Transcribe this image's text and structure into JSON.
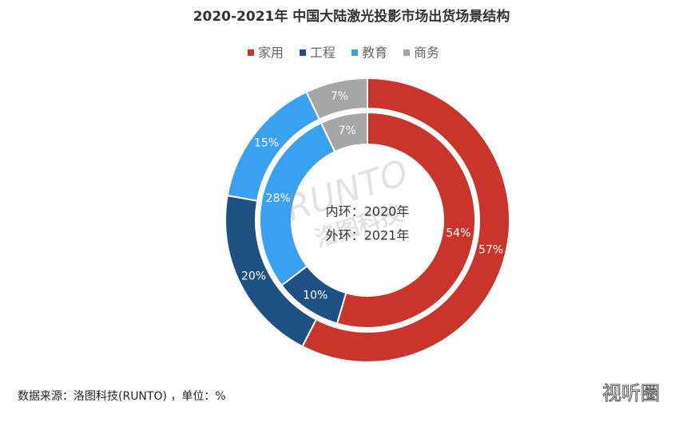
{
  "chart_data": {
    "type": "donut",
    "title": "2020-2021年 中国大陆激光投影市场出货场景结构",
    "categories": [
      "家用",
      "工程",
      "教育",
      "商务"
    ],
    "colors": [
      "#c9352a",
      "#1f5082",
      "#3aa0f0",
      "#a6a6a6"
    ],
    "rings": [
      {
        "name": "内环：2020年",
        "values": [
          54,
          10,
          28,
          7
        ],
        "value_labels": [
          "54%",
          "10%",
          "28%",
          "7%"
        ]
      },
      {
        "name": "外环：2021年",
        "values": [
          57,
          20,
          15,
          7
        ],
        "value_labels": [
          "57%",
          "20%",
          "15%",
          "7%"
        ]
      }
    ],
    "source": "数据来源：洛图科技(RUNTO) ，单位：%",
    "watermark": "RUNTO",
    "watermark_sub": "洛图科技",
    "brand": "视听圈"
  }
}
